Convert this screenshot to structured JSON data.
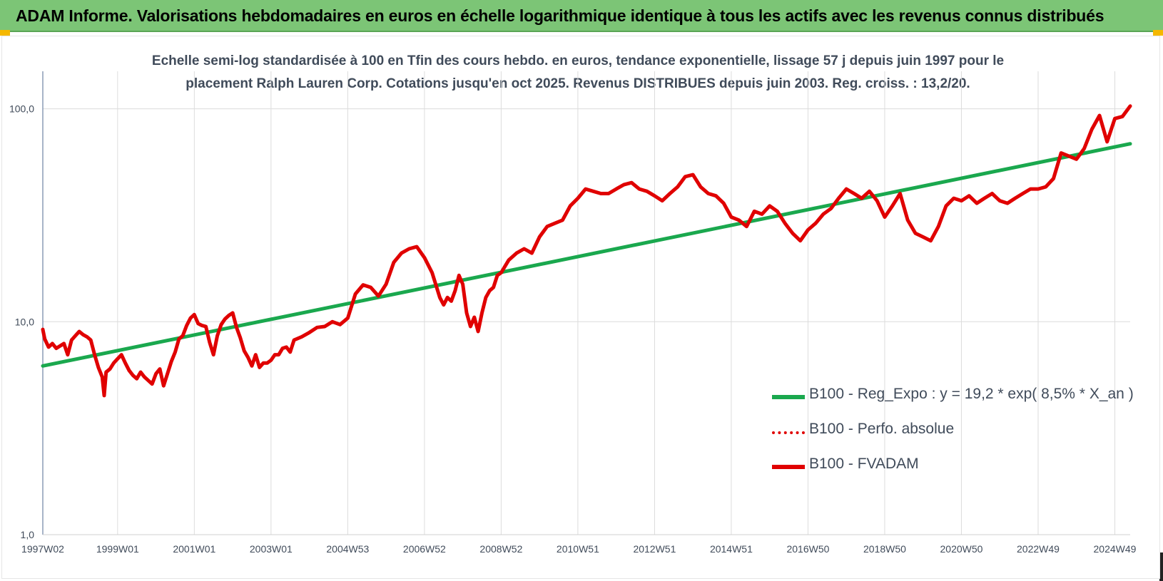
{
  "banner": {
    "title": "ADAM Informe. Valorisations hebdomadaires en euros en échelle logarithmique identique à tous les actifs avec les revenus connus distribués"
  },
  "chart_data": {
    "type": "line",
    "title": "Echelle semi-log standardisée à 100 en Tfin des cours hebdo. en euros, tendance exponentielle, lissage 57 j depuis juin 1997 pour le placement Ralph Lauren Corp. Cotations jusqu'en oct 2025. Revenus DISTRIBUES depuis juin 2003. Reg. croiss. : 13,2/20.",
    "y_scale": "log",
    "ylim": [
      1,
      150
    ],
    "y_ticks": [
      {
        "value": 1,
        "label": "1,0"
      },
      {
        "value": 10,
        "label": "10,0"
      },
      {
        "value": 100,
        "label": "100,0"
      }
    ],
    "xlim": [
      1997.45,
      2025.8
    ],
    "x_ticks": [
      {
        "value": 1997.45,
        "label": "1997W02"
      },
      {
        "value": 1999.4,
        "label": "1999W01"
      },
      {
        "value": 2001.4,
        "label": "2001W01"
      },
      {
        "value": 2003.4,
        "label": "2003W01"
      },
      {
        "value": 2005.4,
        "label": "2004W53"
      },
      {
        "value": 2007.4,
        "label": "2006W52"
      },
      {
        "value": 2009.4,
        "label": "2008W52"
      },
      {
        "value": 2011.4,
        "label": "2010W51"
      },
      {
        "value": 2013.4,
        "label": "2012W51"
      },
      {
        "value": 2015.4,
        "label": "2014W51"
      },
      {
        "value": 2017.4,
        "label": "2016W50"
      },
      {
        "value": 2019.4,
        "label": "2018W50"
      },
      {
        "value": 2021.4,
        "label": "2020W50"
      },
      {
        "value": 2023.4,
        "label": "2022W49"
      },
      {
        "value": 2025.4,
        "label": "2024W49"
      }
    ],
    "grid": true,
    "legend_position": "bottom-right",
    "series": [
      {
        "name": "B100 - Reg_Expo : y = 19,2 * exp( 8,5% *  X_an )",
        "color": "#1aa84e",
        "style": "solid",
        "x": [
          1997.45,
          2025.8
        ],
        "y": [
          6.2,
          68.5
        ]
      },
      {
        "name": "B100 - Perfo. absolue",
        "color": "#e00000",
        "style": "dotted",
        "x": [],
        "y": []
      },
      {
        "name": "B100 - FVADAM",
        "color": "#e00000",
        "style": "solid",
        "x": [
          1997.45,
          1997.5,
          1997.6,
          1997.7,
          1997.8,
          1997.9,
          1998.0,
          1998.1,
          1998.2,
          1998.3,
          1998.4,
          1998.5,
          1998.6,
          1998.7,
          1998.8,
          1998.9,
          1999.0,
          1999.05,
          1999.1,
          1999.2,
          1999.3,
          1999.4,
          1999.5,
          1999.6,
          1999.7,
          1999.8,
          1999.9,
          2000.0,
          2000.1,
          2000.2,
          2000.3,
          2000.4,
          2000.5,
          2000.6,
          2000.7,
          2000.8,
          2000.9,
          2001.0,
          2001.1,
          2001.2,
          2001.3,
          2001.4,
          2001.5,
          2001.6,
          2001.7,
          2001.8,
          2001.9,
          2002.0,
          2002.1,
          2002.2,
          2002.3,
          2002.4,
          2002.5,
          2002.6,
          2002.7,
          2002.8,
          2002.9,
          2003.0,
          2003.1,
          2003.2,
          2003.3,
          2003.4,
          2003.5,
          2003.6,
          2003.7,
          2003.8,
          2003.9,
          2004.0,
          2004.2,
          2004.4,
          2004.6,
          2004.8,
          2005.0,
          2005.2,
          2005.4,
          2005.6,
          2005.8,
          2006.0,
          2006.2,
          2006.4,
          2006.6,
          2006.8,
          2007.0,
          2007.2,
          2007.4,
          2007.6,
          2007.8,
          2007.9,
          2008.0,
          2008.1,
          2008.2,
          2008.3,
          2008.4,
          2008.5,
          2008.6,
          2008.7,
          2008.8,
          2008.9,
          2009.0,
          2009.1,
          2009.2,
          2009.3,
          2009.4,
          2009.6,
          2009.8,
          2010.0,
          2010.2,
          2010.4,
          2010.6,
          2010.8,
          2011.0,
          2011.2,
          2011.4,
          2011.6,
          2011.8,
          2012.0,
          2012.2,
          2012.4,
          2012.6,
          2012.8,
          2013.0,
          2013.2,
          2013.4,
          2013.6,
          2013.8,
          2014.0,
          2014.2,
          2014.4,
          2014.6,
          2014.8,
          2015.0,
          2015.2,
          2015.4,
          2015.6,
          2015.8,
          2016.0,
          2016.2,
          2016.4,
          2016.6,
          2016.8,
          2017.0,
          2017.2,
          2017.4,
          2017.6,
          2017.8,
          2018.0,
          2018.2,
          2018.4,
          2018.6,
          2018.8,
          2019.0,
          2019.2,
          2019.4,
          2019.6,
          2019.8,
          2020.0,
          2020.2,
          2020.4,
          2020.6,
          2020.8,
          2021.0,
          2021.2,
          2021.4,
          2021.6,
          2021.8,
          2022.0,
          2022.2,
          2022.4,
          2022.6,
          2022.8,
          2023.0,
          2023.2,
          2023.4,
          2023.6,
          2023.8,
          2024.0,
          2024.2,
          2024.4,
          2024.6,
          2024.8,
          2025.0,
          2025.2,
          2025.4,
          2025.6,
          2025.8
        ],
        "y": [
          9.2,
          8.3,
          7.6,
          7.9,
          7.5,
          7.7,
          7.9,
          7.0,
          8.2,
          8.6,
          9.0,
          8.7,
          8.5,
          8.2,
          7.0,
          6.1,
          5.5,
          4.5,
          5.8,
          6.0,
          6.4,
          6.7,
          7.0,
          6.4,
          5.9,
          5.6,
          5.4,
          5.8,
          5.5,
          5.3,
          5.1,
          5.7,
          6.0,
          5.0,
          5.7,
          6.5,
          7.2,
          8.3,
          8.6,
          9.6,
          10.4,
          10.8,
          9.8,
          9.6,
          9.5,
          8.0,
          7.0,
          8.6,
          9.7,
          10.3,
          10.7,
          11.0,
          9.4,
          8.4,
          7.3,
          6.8,
          6.2,
          7.0,
          6.1,
          6.4,
          6.4,
          6.6,
          7.0,
          7.0,
          7.5,
          7.6,
          7.2,
          8.2,
          8.5,
          8.9,
          9.4,
          9.5,
          10.0,
          9.7,
          10.4,
          13.5,
          14.9,
          14.5,
          13.2,
          15.0,
          19.0,
          21.0,
          22.0,
          22.5,
          20.0,
          17.0,
          13.0,
          12.0,
          13.0,
          12.5,
          14.0,
          16.5,
          15.0,
          11.0,
          9.5,
          10.5,
          9.0,
          11.0,
          13.0,
          14.0,
          14.5,
          16.5,
          17.0,
          19.5,
          21.0,
          22.0,
          21.0,
          25.0,
          28.0,
          29.0,
          30.0,
          35.0,
          38.0,
          42.0,
          41.0,
          40.0,
          40.0,
          42.0,
          44.0,
          45.0,
          42.0,
          41.0,
          39.0,
          37.0,
          40.0,
          43.0,
          48.0,
          49.0,
          43.0,
          40.0,
          39.0,
          36.0,
          31.0,
          30.0,
          28.0,
          33.0,
          32.0,
          35.0,
          33.0,
          29.0,
          26.0,
          24.0,
          27.0,
          29.0,
          32.0,
          34.0,
          38.0,
          42.0,
          40.0,
          38.0,
          41.0,
          37.0,
          31.0,
          35.0,
          40.0,
          30.0,
          26.0,
          25.0,
          24.0,
          28.0,
          35.0,
          38.0,
          37.0,
          39.0,
          36.0,
          38.0,
          40.0,
          37.0,
          36.0,
          38.0,
          40.0,
          42.0,
          42.0,
          43.0,
          47.0,
          62.0,
          60.0,
          58.0,
          65.0,
          80.0,
          93.0,
          70.0,
          90.0,
          92.0,
          103.0
        ]
      }
    ]
  }
}
